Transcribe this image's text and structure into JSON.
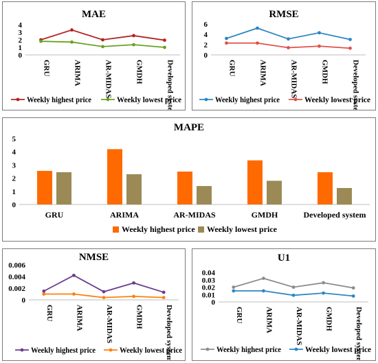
{
  "chart_data": [
    {
      "type": "line",
      "title": "MAE",
      "categories": [
        "GRU",
        "ARIMA",
        "AR-MIDAS",
        "GMDH",
        "Developed system"
      ],
      "ylim": [
        0,
        4
      ],
      "yticks": [
        "0",
        "1",
        "2",
        "3",
        "4"
      ],
      "series": [
        {
          "name": "Weekly highest price",
          "color": "#b22222",
          "values": [
            2.0,
            3.3,
            2.0,
            2.55,
            1.95
          ]
        },
        {
          "name": "Weekly lowest price",
          "color": "#6aa121",
          "values": [
            1.8,
            1.7,
            1.1,
            1.35,
            1.0
          ]
        }
      ],
      "legend": "bottom",
      "grid": false
    },
    {
      "type": "line",
      "title": "RMSE",
      "categories": [
        "GRU",
        "ARIMA",
        "AR-MIDAS",
        "GMDH",
        "Developed system"
      ],
      "ylim": [
        0,
        6
      ],
      "yticks": [
        "0",
        "2",
        "4",
        "6"
      ],
      "series": [
        {
          "name": "Weekly highest price",
          "color": "#2e86c1",
          "values": [
            3.2,
            5.2,
            3.1,
            4.3,
            3.0
          ]
        },
        {
          "name": "Weekly lowest price",
          "color": "#e0504a",
          "values": [
            2.3,
            2.3,
            1.4,
            1.7,
            1.3
          ]
        }
      ],
      "legend": "bottom",
      "grid": false
    },
    {
      "type": "bar",
      "title": "MAPE",
      "categories": [
        "GRU",
        "ARIMA",
        "AR-MIDAS",
        "GMDH",
        "Developed system"
      ],
      "ylim": [
        0,
        5
      ],
      "yticks": [
        "0",
        "1",
        "2",
        "3",
        "4",
        "5"
      ],
      "series": [
        {
          "name": "Weekly highest price",
          "color": "#ff6a00",
          "values": [
            2.55,
            4.2,
            2.5,
            3.35,
            2.45
          ]
        },
        {
          "name": "Weekly lowest price",
          "color": "#9b8a55",
          "values": [
            2.45,
            2.3,
            1.4,
            1.8,
            1.25
          ]
        }
      ],
      "legend": "bottom",
      "grid": false
    },
    {
      "type": "line",
      "title": "NMSE",
      "categories": [
        "GRU",
        "ARIMA",
        "AR-MIDAS",
        "GMDH",
        "Developed system"
      ],
      "ylim": [
        0,
        0.006
      ],
      "yticks": [
        "0",
        "0.002",
        "0.004",
        "0.006"
      ],
      "series": [
        {
          "name": "Weekly highest price",
          "color": "#6a3d8f",
          "values": [
            0.0015,
            0.0042,
            0.0014,
            0.0029,
            0.0013
          ]
        },
        {
          "name": "Weekly lowest price",
          "color": "#ff7f0e",
          "values": [
            0.001,
            0.001,
            0.0004,
            0.0006,
            0.0004
          ]
        }
      ],
      "legend": "bottom",
      "grid": false
    },
    {
      "type": "line",
      "title": "U1",
      "categories": [
        "GRU",
        "ARIMA",
        "AR-MIDAS",
        "GMDH",
        "Developed system"
      ],
      "ylim": [
        0,
        0.04
      ],
      "yticks": [
        "0",
        "0.01",
        "0.02",
        "0.03",
        "0.04"
      ],
      "series": [
        {
          "name": "Weekly highest price",
          "color": "#8c8c8c",
          "values": [
            0.02,
            0.032,
            0.02,
            0.026,
            0.019
          ]
        },
        {
          "name": "Weekly lowest price",
          "color": "#2e86c1",
          "values": [
            0.015,
            0.015,
            0.009,
            0.012,
            0.008
          ]
        }
      ],
      "legend": "bottom",
      "grid": false
    }
  ]
}
